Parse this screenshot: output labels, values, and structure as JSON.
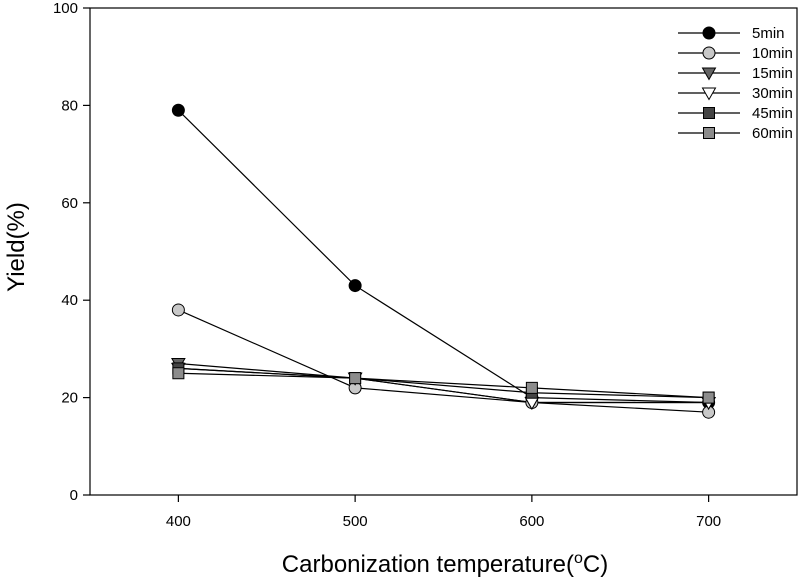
{
  "chart_data": {
    "type": "line",
    "xlabel": "Carbonization temperature(",
    "xlabel_sup": "o",
    "xlabel_end": "C)",
    "ylabel": "Yield(%)",
    "x": [
      400,
      500,
      600,
      700
    ],
    "xlim": [
      350,
      750
    ],
    "ylim": [
      0,
      100
    ],
    "xticks": [
      "400",
      "500",
      "600",
      "700"
    ],
    "yticks": [
      "0",
      "20",
      "40",
      "60",
      "80",
      "100"
    ],
    "grid": false,
    "legend_position": "top-right",
    "series": [
      {
        "name": "5min",
        "values": [
          79,
          43,
          20,
          19
        ],
        "marker": "circle",
        "fill": "#000000"
      },
      {
        "name": "10min",
        "values": [
          38,
          22,
          19,
          17
        ],
        "marker": "circle",
        "fill": "#c8c8c8"
      },
      {
        "name": "15min",
        "values": [
          27,
          24,
          19,
          19
        ],
        "marker": "triangle-down",
        "fill": "#646464"
      },
      {
        "name": "30min",
        "values": [
          26,
          24,
          19,
          19
        ],
        "marker": "triangle-down",
        "fill": "#ffffff"
      },
      {
        "name": "45min",
        "values": [
          26,
          24,
          21,
          20
        ],
        "marker": "square",
        "fill": "#444444"
      },
      {
        "name": "60min",
        "values": [
          25,
          24,
          22,
          20
        ],
        "marker": "square",
        "fill": "#8c8c8c"
      }
    ]
  }
}
